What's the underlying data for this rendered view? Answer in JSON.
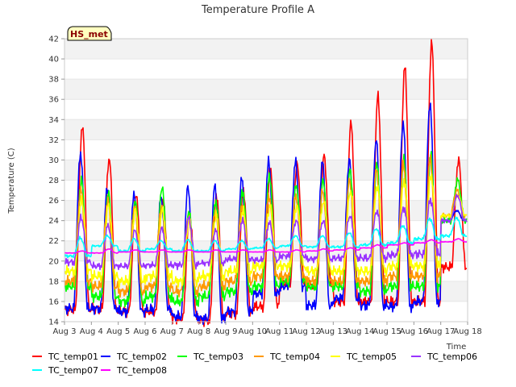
{
  "chart_data": {
    "type": "line",
    "title": "Temperature Profile A",
    "xlabel": "Time",
    "ylabel": "Temperature (C)",
    "badge": "HS_met",
    "xlim": [
      0,
      15
    ],
    "ylim": [
      14,
      42
    ],
    "x_ticks": [
      {
        "v": 0,
        "label": "Aug 3"
      },
      {
        "v": 1,
        "label": "Aug 4"
      },
      {
        "v": 2,
        "label": "Aug 5"
      },
      {
        "v": 3,
        "label": "Aug 6"
      },
      {
        "v": 4,
        "label": "Aug 7"
      },
      {
        "v": 5,
        "label": "Aug 8"
      },
      {
        "v": 6,
        "label": "Aug 9"
      },
      {
        "v": 7,
        "label": "Aug 10"
      },
      {
        "v": 8,
        "label": "Aug 11"
      },
      {
        "v": 9,
        "label": "Aug 12"
      },
      {
        "v": 10,
        "label": "Aug 13"
      },
      {
        "v": 11,
        "label": "Aug 14"
      },
      {
        "v": 12,
        "label": "Aug 15"
      },
      {
        "v": 13,
        "label": "Aug 16"
      },
      {
        "v": 14,
        "label": "Aug 17"
      },
      {
        "v": 15,
        "label": "Aug 18"
      }
    ],
    "y_ticks": [
      14,
      16,
      18,
      20,
      22,
      24,
      26,
      28,
      30,
      32,
      34,
      36,
      38,
      40,
      42
    ],
    "grid": "horizontal bands",
    "legend_position": "bottom",
    "days": [
      "Aug 3",
      "Aug 4",
      "Aug 5",
      "Aug 6",
      "Aug 7",
      "Aug 8",
      "Aug 9",
      "Aug 10",
      "Aug 11",
      "Aug 12",
      "Aug 13",
      "Aug 14",
      "Aug 15",
      "Aug 16",
      "Aug 17"
    ],
    "series": [
      {
        "name": "TC_temp01",
        "color": "#ff0000",
        "daily_max": [
          33.4,
          30.2,
          26.7,
          26.2,
          24.5,
          26.5,
          27.0,
          29.3,
          29.6,
          30.4,
          33.6,
          36.3,
          39.2,
          41.6,
          30.0
        ],
        "daily_min": [
          15.2,
          15.3,
          15.0,
          15.0,
          14.3,
          14.1,
          14.8,
          15.5,
          17.8,
          17.7,
          16.0,
          16.0,
          16.0,
          16.0,
          19.4
        ]
      },
      {
        "name": "TC_temp02",
        "color": "#0000ff",
        "daily_max": [
          30.7,
          27.2,
          26.7,
          26.3,
          27.3,
          27.4,
          28.1,
          29.8,
          29.8,
          29.8,
          30.0,
          32.0,
          33.7,
          35.6,
          25.0
        ],
        "daily_min": [
          15.3,
          15.3,
          15.0,
          15.2,
          14.5,
          14.3,
          15.0,
          16.8,
          17.5,
          15.6,
          16.3,
          15.6,
          15.5,
          16.0,
          24.0
        ]
      },
      {
        "name": "TC_temp03",
        "color": "#00ff00",
        "daily_max": [
          28.0,
          26.8,
          26.0,
          27.4,
          25.0,
          26.0,
          27.0,
          28.5,
          27.5,
          28.0,
          29.0,
          29.5,
          30.0,
          30.5,
          28.0
        ],
        "daily_min": [
          17.5,
          16.5,
          16.0,
          16.5,
          16.0,
          16.5,
          17.0,
          17.5,
          18.0,
          17.5,
          17.5,
          17.0,
          17.5,
          17.5,
          24.0
        ]
      },
      {
        "name": "TC_temp04",
        "color": "#ff9900",
        "daily_max": [
          27.0,
          26.0,
          25.5,
          25.5,
          24.5,
          25.0,
          25.5,
          26.5,
          26.5,
          27.0,
          28.0,
          29.0,
          29.5,
          30.0,
          27.0
        ],
        "daily_min": [
          18.0,
          17.5,
          17.0,
          17.5,
          17.0,
          17.5,
          18.0,
          18.5,
          18.5,
          18.0,
          18.0,
          18.0,
          18.5,
          18.5,
          24.5
        ]
      },
      {
        "name": "TC_temp05",
        "color": "#ffff00",
        "daily_max": [
          26.0,
          25.5,
          25.0,
          25.0,
          24.0,
          24.5,
          25.0,
          25.5,
          25.5,
          26.0,
          27.0,
          27.5,
          28.0,
          28.5,
          26.5
        ],
        "daily_min": [
          19.0,
          18.5,
          18.0,
          18.5,
          18.0,
          18.5,
          19.0,
          19.5,
          19.5,
          19.0,
          19.0,
          19.0,
          19.5,
          19.5,
          24.5
        ]
      },
      {
        "name": "TC_temp06",
        "color": "#9933ff",
        "daily_max": [
          24.3,
          23.5,
          23.0,
          23.2,
          24.2,
          23.0,
          24.0,
          23.8,
          24.0,
          24.0,
          24.5,
          25.0,
          25.3,
          26.1,
          26.5
        ],
        "daily_min": [
          19.9,
          19.5,
          19.5,
          19.6,
          19.6,
          19.8,
          20.2,
          20.1,
          20.5,
          20.2,
          20.3,
          20.3,
          20.6,
          20.7,
          24.0
        ]
      },
      {
        "name": "TC_temp07",
        "color": "#00ffff",
        "daily_max": [
          22.3,
          22.5,
          22.2,
          22.0,
          22.1,
          22.0,
          22.0,
          22.2,
          22.5,
          22.5,
          22.8,
          23.2,
          23.5,
          24.2,
          24.3
        ],
        "daily_min": [
          20.5,
          21.5,
          21.0,
          21.2,
          21.0,
          21.0,
          21.2,
          21.3,
          21.5,
          21.4,
          21.4,
          21.6,
          21.8,
          22.2,
          22.5
        ]
      },
      {
        "name": "TC_temp08",
        "color": "#ff00ff",
        "daily_max": [
          21.0,
          21.2,
          21.1,
          21.1,
          21.1,
          21.1,
          21.1,
          21.1,
          21.1,
          21.2,
          21.3,
          21.6,
          21.8,
          22.1,
          22.2
        ],
        "daily_min": [
          20.8,
          20.8,
          20.9,
          20.9,
          20.9,
          20.9,
          20.9,
          20.9,
          20.9,
          21.0,
          21.1,
          21.3,
          21.6,
          21.8,
          21.9
        ]
      }
    ]
  }
}
